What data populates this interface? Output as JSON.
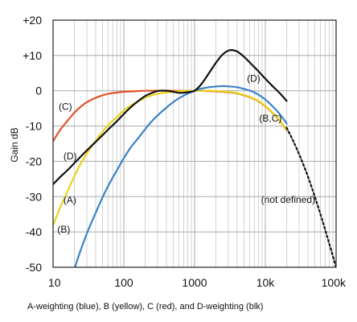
{
  "chart_data": {
    "type": "line",
    "ylabel": "Gain dB",
    "caption": "A-weighting (blue), B (yellow), C (red), and D-weighting (blk)",
    "x_scale": "log",
    "xlim": [
      10,
      100000
    ],
    "ylim": [
      -50,
      20
    ],
    "grid": true,
    "x_ticks": [
      {
        "value": 10,
        "label": "10"
      },
      {
        "value": 100,
        "label": "100"
      },
      {
        "value": 1000,
        "label": "1000"
      },
      {
        "value": 10000,
        "label": "10k"
      },
      {
        "value": 100000,
        "label": "100k"
      }
    ],
    "y_ticks": [
      {
        "value": 20,
        "label": "+20"
      },
      {
        "value": 10,
        "label": "+10"
      },
      {
        "value": 0,
        "label": "0"
      },
      {
        "value": -10,
        "label": "-10"
      },
      {
        "value": -20,
        "label": "-20"
      },
      {
        "value": -30,
        "label": "-30"
      },
      {
        "value": -40,
        "label": "-40"
      },
      {
        "value": -50,
        "label": "-50"
      }
    ],
    "series": [
      {
        "key": "A",
        "color": "#3b82c8",
        "x": [
          20,
          25,
          31.5,
          40,
          50,
          63,
          80,
          100,
          125,
          160,
          200,
          250,
          315,
          400,
          500,
          630,
          800,
          1000,
          1250,
          1600,
          2000,
          2500,
          3150,
          4000,
          5000,
          6300,
          8000,
          10000,
          12500,
          16000,
          20000
        ],
        "y": [
          -50.5,
          -44.7,
          -39.4,
          -34.6,
          -30.2,
          -26.2,
          -22.5,
          -19.1,
          -16.1,
          -13.4,
          -10.9,
          -8.6,
          -6.6,
          -4.8,
          -3.2,
          -1.9,
          -0.8,
          0.0,
          0.6,
          1.0,
          1.2,
          1.3,
          1.2,
          1.0,
          0.5,
          -0.1,
          -1.1,
          -2.5,
          -4.3,
          -6.6,
          -9.3
        ]
      },
      {
        "key": "B",
        "color": "#e8d51a",
        "x": [
          10,
          12.5,
          16,
          20,
          25,
          31.5,
          40,
          50,
          63,
          80,
          100,
          125,
          160,
          200,
          250,
          315,
          400,
          500,
          630,
          800,
          1000,
          1250,
          1600,
          2000,
          2500,
          3150,
          4000,
          5000,
          6300,
          8000,
          10000,
          12500,
          16000,
          20000
        ],
        "y": [
          -38.2,
          -33.2,
          -28.5,
          -24.2,
          -20.4,
          -17.1,
          -14.2,
          -11.6,
          -9.3,
          -7.4,
          -5.6,
          -4.2,
          -3.0,
          -2.0,
          -1.3,
          -0.8,
          -0.5,
          -0.3,
          -0.1,
          0.0,
          0.0,
          0.0,
          0.0,
          -0.1,
          -0.2,
          -0.4,
          -0.7,
          -1.2,
          -1.9,
          -2.9,
          -4.3,
          -6.1,
          -8.4,
          -11.1
        ]
      },
      {
        "key": "C",
        "color": "#e0532a",
        "x": [
          10,
          12.5,
          16,
          20,
          25,
          31.5,
          40,
          50,
          63,
          80,
          100,
          125,
          160,
          200,
          250,
          315,
          400,
          500,
          630,
          800,
          1000,
          1250,
          1600,
          2000,
          2500,
          3150,
          4000,
          5000,
          6300,
          8000,
          10000,
          12500,
          16000,
          20000
        ],
        "y": [
          -14.3,
          -11.2,
          -8.5,
          -6.2,
          -4.4,
          -3.0,
          -2.0,
          -1.3,
          -0.8,
          -0.5,
          -0.3,
          -0.2,
          -0.1,
          0.0,
          0.0,
          0.0,
          0.0,
          0.0,
          0.0,
          0.0,
          0.0,
          0.0,
          -0.1,
          -0.2,
          -0.3,
          -0.5,
          -0.8,
          -1.3,
          -2.0,
          -3.0,
          -4.4,
          -6.2,
          -8.5,
          -11.2
        ]
      },
      {
        "key": "D",
        "color": "#111111",
        "x": [
          10,
          12.5,
          16,
          20,
          25,
          31.5,
          40,
          50,
          63,
          80,
          100,
          125,
          160,
          200,
          250,
          315,
          400,
          500,
          630,
          800,
          1000,
          1250,
          1600,
          2000,
          2500,
          3150,
          4000,
          5000,
          6300,
          8000,
          10000,
          12500,
          16000,
          20000
        ],
        "y": [
          -26.5,
          -24.5,
          -22.5,
          -20.5,
          -18.5,
          -16.5,
          -14.5,
          -12.6,
          -10.6,
          -8.6,
          -6.6,
          -4.7,
          -2.9,
          -1.5,
          -0.6,
          0.0,
          0.0,
          -0.3,
          -0.6,
          -0.4,
          0.0,
          1.9,
          5.0,
          7.9,
          10.3,
          11.5,
          11.1,
          9.6,
          7.6,
          5.5,
          3.4,
          1.4,
          -0.7,
          -2.9
        ]
      },
      {
        "key": "extrapolation",
        "color": "#111111",
        "dashed": true,
        "x": [
          20000,
          25000,
          31500,
          40000,
          50000,
          63000,
          80000,
          100000
        ],
        "y": [
          -10.5,
          -14.4,
          -19.0,
          -24.3,
          -30.0,
          -36.3,
          -43.3,
          -50.0
        ]
      }
    ],
    "annotations": [
      {
        "text": "(D)",
        "x": 5500,
        "y": 3.5
      },
      {
        "text": "(C)",
        "x": 12,
        "y": -4.5
      },
      {
        "text": "(B,C)",
        "x": 8200,
        "y": -7.8
      },
      {
        "text": "(D)",
        "x": 14,
        "y": -18.5
      },
      {
        "text": "(A)",
        "x": 14,
        "y": -31.0
      },
      {
        "text": "(B)",
        "x": 11.5,
        "y": -39.3
      },
      {
        "text": "(not defined)",
        "x": 8700,
        "y": -30.9
      }
    ]
  }
}
